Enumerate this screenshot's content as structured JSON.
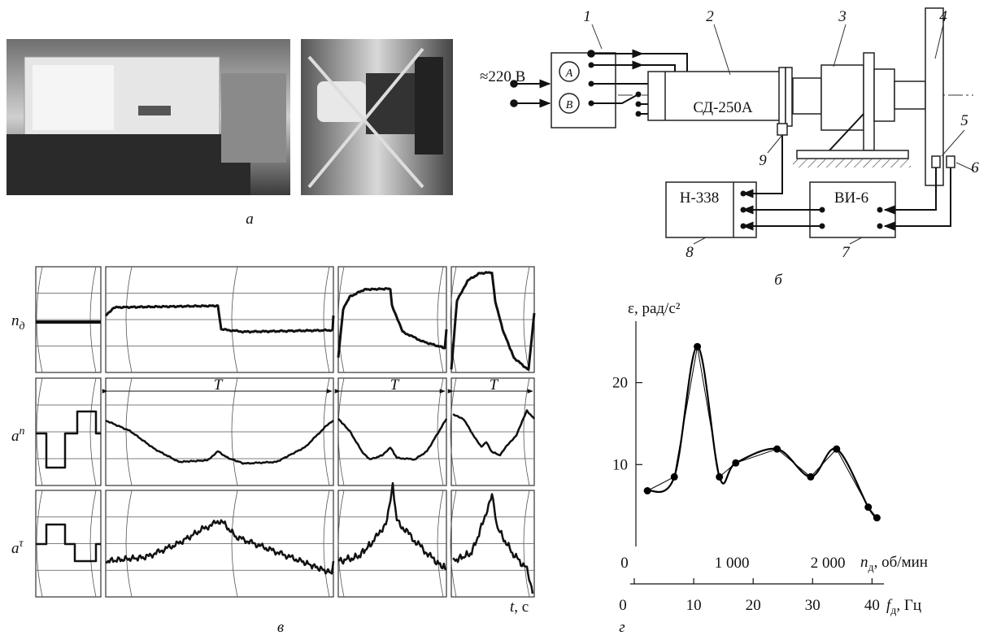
{
  "panel_a": {
    "caption": "а"
  },
  "panel_b": {
    "supply": "≈220 В",
    "phase_a": "A",
    "phase_b": "B",
    "motor": "СД-250А",
    "recorder": "Н-338",
    "meter": "ВИ-6",
    "callouts": [
      "1",
      "2",
      "3",
      "4",
      "5",
      "6",
      "7",
      "8",
      "9"
    ],
    "caption": "б"
  },
  "panel_c": {
    "rows": [
      {
        "symbol": "n",
        "sub": "д"
      },
      {
        "symbol": "a",
        "sup": "n"
      },
      {
        "symbol": "a",
        "sup": "τ"
      }
    ],
    "period_labels": [
      "T",
      "T",
      "T"
    ],
    "time_axis": {
      "symbol": "t",
      "unit": ", с"
    },
    "caption": "в"
  },
  "chart_data": {
    "type": "line",
    "caption": "г",
    "ylabel": "ε, рад/с²",
    "xlabel": {
      "symbol": "n",
      "sub": "д",
      "unit": ", об/мин"
    },
    "x2label": {
      "symbol": "f",
      "sub": "д",
      "unit": ", Гц"
    },
    "x": [
      120,
      400,
      640,
      870,
      1040,
      1470,
      1820,
      2090,
      2420,
      2510
    ],
    "values": [
      6.8,
      8.5,
      24.4,
      8.5,
      10.2,
      11.9,
      8.5,
      11.9,
      4.8,
      3.5
    ],
    "color": "#000000",
    "xlim": [
      0,
      2600
    ],
    "xticks": [
      0,
      {
        "value": 1000,
        "label": "1 000"
      },
      {
        "value": 2000,
        "label": "2 000"
      }
    ],
    "ylim": [
      0,
      27.5
    ],
    "yticks": [
      10,
      20
    ],
    "x2lim": [
      0,
      42
    ],
    "x2ticks": [
      0,
      10,
      20,
      30,
      40
    ]
  }
}
